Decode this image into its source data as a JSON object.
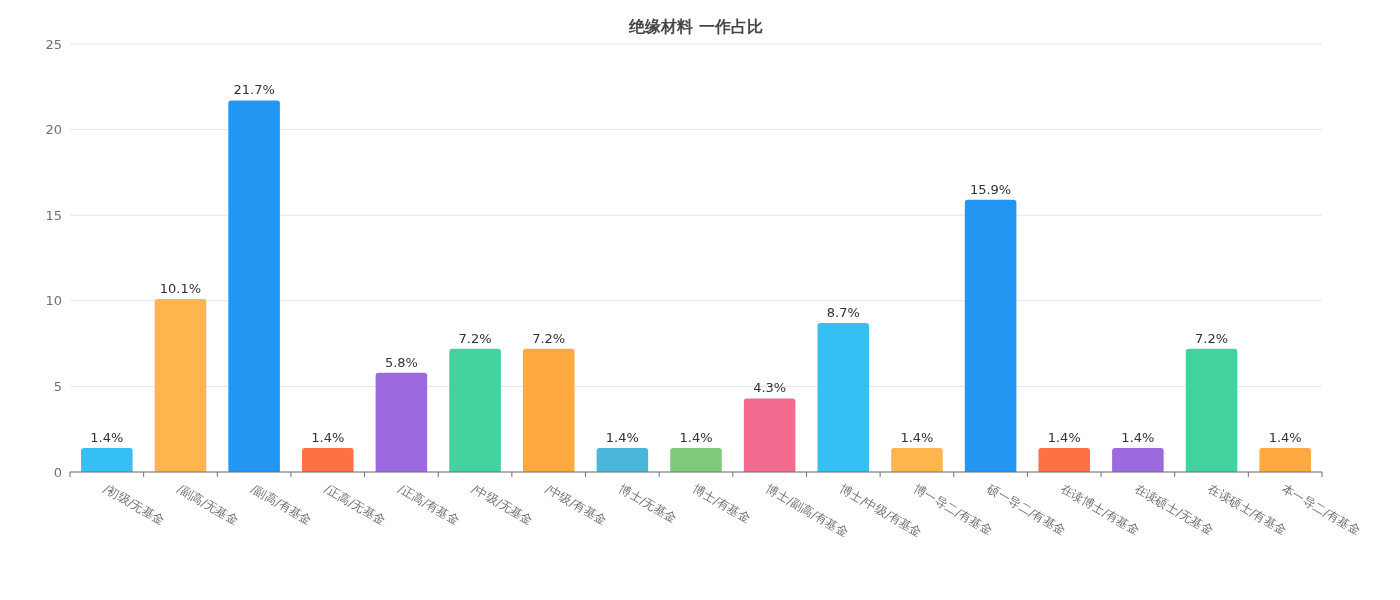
{
  "chart_data": {
    "type": "bar",
    "title": "绝缘材料 一作占比",
    "categories": [
      "/初级/无基金",
      "/副高/无基金",
      "/副高/有基金",
      "/正高/无基金",
      "/正高/有基金",
      "/中级/无基金",
      "/中级/有基金",
      "博士/无基金",
      "博士/有基金",
      "博士/副高/有基金",
      "博士/中级/有基金",
      "博一导二/有基金",
      "硕一导二/有基金",
      "在读博士/有基金",
      "在读硕士/无基金",
      "在读硕士/有基金",
      "本一导二/有基金"
    ],
    "values": [
      1.4,
      10.1,
      21.7,
      1.4,
      5.8,
      7.2,
      7.2,
      1.4,
      1.4,
      4.3,
      8.7,
      1.4,
      15.9,
      1.4,
      1.4,
      7.2,
      1.4
    ],
    "value_labels": [
      "1.4%",
      "10.1%",
      "21.7%",
      "1.4%",
      "5.8%",
      "7.2%",
      "7.2%",
      "1.4%",
      "1.4%",
      "4.3%",
      "8.7%",
      "1.4%",
      "15.9%",
      "1.4%",
      "1.4%",
      "7.2%",
      "1.4%"
    ],
    "colors": [
      "#36bff2",
      "#ffb54d",
      "#2196f3",
      "#ff7043",
      "#9c6ade",
      "#43d19e",
      "#ffa940",
      "#4ab6d8",
      "#7ecb7a",
      "#f56a8f",
      "#36bff2",
      "#ffb54d",
      "#2196f3",
      "#ff7043",
      "#9c6ade",
      "#43d19e",
      "#ffa940"
    ],
    "ylim": [
      0,
      25
    ],
    "yticks": [
      0,
      5,
      10,
      15,
      20,
      25
    ],
    "grid": "y"
  }
}
